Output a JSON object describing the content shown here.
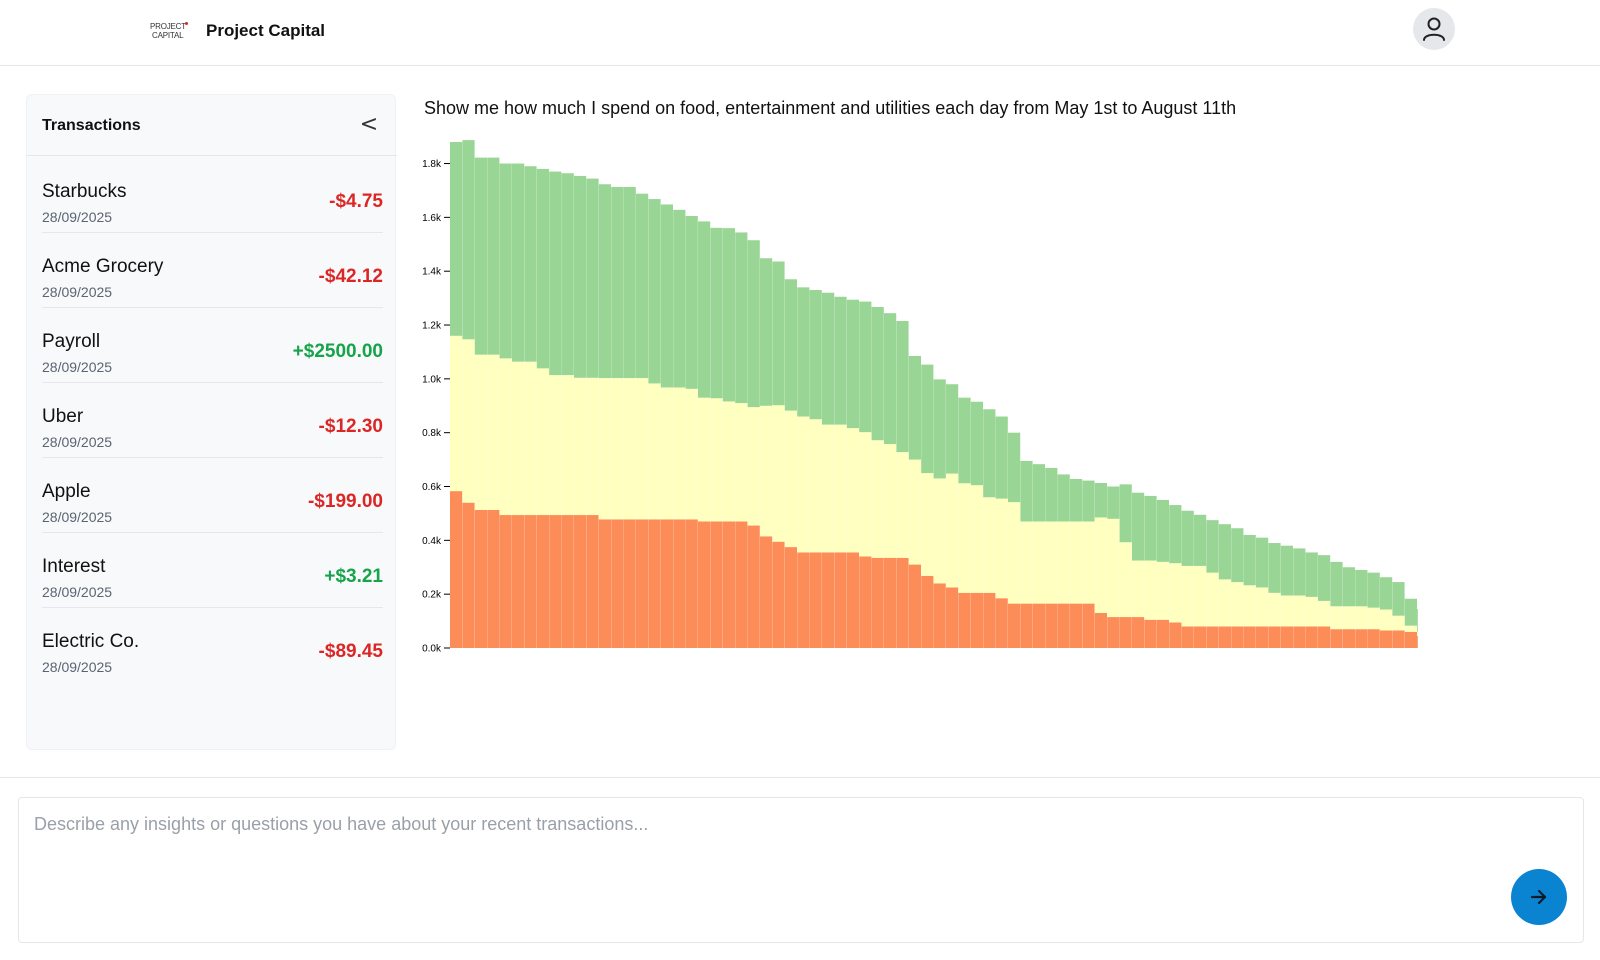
{
  "header": {
    "logo_line1": "PROJECT",
    "logo_line2": "CAPITAL",
    "app_title": "Project Capital"
  },
  "sidebar": {
    "title": "Transactions",
    "collapse_label": "<",
    "transactions": [
      {
        "name": "Starbucks",
        "date": "28/09/2025",
        "amount": "-$4.75",
        "type": "debit"
      },
      {
        "name": "Acme Grocery",
        "date": "28/09/2025",
        "amount": "-$42.12",
        "type": "debit"
      },
      {
        "name": "Payroll",
        "date": "28/09/2025",
        "amount": "+$2500.00",
        "type": "credit"
      },
      {
        "name": "Uber",
        "date": "28/09/2025",
        "amount": "-$12.30",
        "type": "debit"
      },
      {
        "name": "Apple",
        "date": "28/09/2025",
        "amount": "-$199.00",
        "type": "debit"
      },
      {
        "name": "Interest",
        "date": "28/09/2025",
        "amount": "+$3.21",
        "type": "credit"
      },
      {
        "name": "Electric Co.",
        "date": "28/09/2025",
        "amount": "-$89.45",
        "type": "debit"
      }
    ]
  },
  "chat": {
    "query": "Show me how much I spend on food, entertainment and utilities each day from May 1st to August 11th",
    "input_placeholder": "Describe any insights or questions you have about your recent transactions...",
    "send_icon": "arrow-right-icon"
  },
  "icons": {
    "avatar": "user-icon",
    "collapse": "chevron-left-icon"
  },
  "colors": {
    "debit": "#dc2626",
    "credit": "#16a34a",
    "send_button": "#0a84d0"
  },
  "chart_data": {
    "type": "bar",
    "stacked": true,
    "title": "",
    "xlabel": "",
    "ylabel": "",
    "ylim": [
      0,
      1880
    ],
    "yticks": [
      0,
      200,
      400,
      600,
      800,
      1000,
      1200,
      1400,
      1600,
      1800
    ],
    "ytick_labels": [
      "0.0k",
      "0.2k",
      "0.4k",
      "0.6k",
      "0.8k",
      "1.0k",
      "1.2k",
      "1.4k",
      "1.6k",
      "1.8k"
    ],
    "series_colors": [
      "#fc8d59",
      "#ffffbf",
      "#99d594"
    ],
    "bottom": [
      583,
      540,
      513,
      513,
      494,
      494,
      494,
      494,
      494,
      494,
      494,
      494,
      478,
      478,
      478,
      478,
      478,
      478,
      478,
      478,
      470,
      470,
      470,
      470,
      455,
      415,
      395,
      375,
      355,
      355,
      355,
      355,
      355,
      340,
      335,
      335,
      335,
      310,
      268,
      240,
      225,
      205,
      205,
      205,
      185,
      165,
      165,
      165,
      165,
      165,
      165,
      165,
      130,
      115,
      115,
      115,
      105,
      105,
      95,
      80,
      80,
      80,
      80,
      80,
      80,
      80,
      80,
      80,
      80,
      80,
      80,
      70,
      70,
      70,
      70,
      65,
      65,
      60,
      45,
      40,
      40,
      40,
      35,
      30,
      25,
      0,
      0
    ],
    "middle": [
      577,
      607,
      577,
      577,
      582,
      570,
      570,
      545,
      520,
      520,
      510,
      510,
      525,
      525,
      525,
      525,
      505,
      490,
      490,
      485,
      460,
      458,
      446,
      440,
      440,
      485,
      507,
      507,
      505,
      495,
      475,
      475,
      462,
      462,
      437,
      423,
      393,
      390,
      382,
      390,
      423,
      407,
      400,
      355,
      370,
      377,
      305,
      305,
      305,
      305,
      305,
      305,
      355,
      365,
      278,
      210,
      220,
      215,
      220,
      225,
      225,
      200,
      175,
      165,
      153,
      145,
      125,
      115,
      115,
      110,
      95,
      85,
      85,
      85,
      80,
      78,
      55,
      23,
      15,
      15,
      15,
      15,
      15,
      10,
      10,
      20,
      10
    ],
    "top": [
      720,
      740,
      732,
      732,
      724,
      736,
      726,
      741,
      756,
      750,
      750,
      740,
      720,
      710,
      710,
      685,
      685,
      680,
      660,
      642,
      655,
      633,
      644,
      634,
      620,
      548,
      534,
      488,
      480,
      480,
      490,
      475,
      477,
      485,
      495,
      486,
      487,
      385,
      403,
      368,
      332,
      318,
      310,
      327,
      305,
      258,
      225,
      213,
      199,
      175,
      158,
      152,
      128,
      120,
      215,
      252,
      240,
      230,
      216,
      205,
      190,
      195,
      205,
      200,
      187,
      185,
      185,
      185,
      175,
      165,
      170,
      165,
      145,
      135,
      130,
      120,
      125,
      100,
      85,
      65,
      60,
      55,
      50,
      50,
      40,
      10,
      15
    ]
  }
}
